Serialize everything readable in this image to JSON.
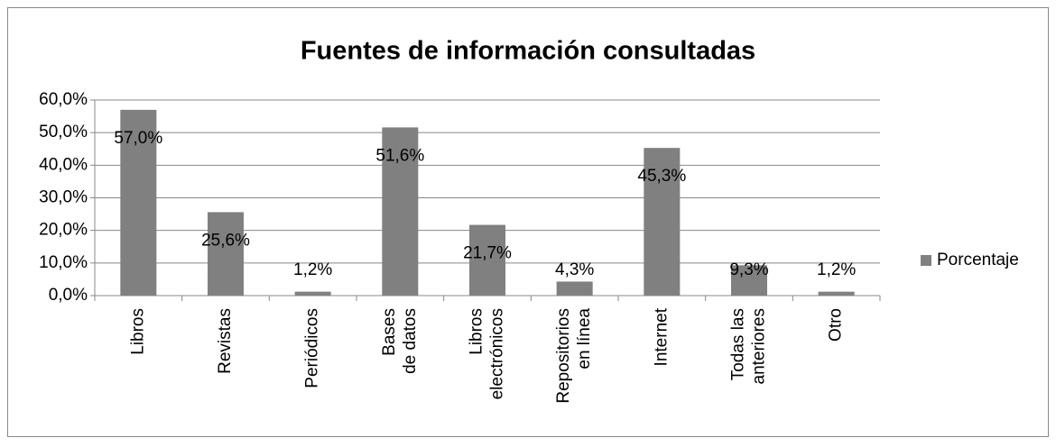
{
  "chart_data": {
    "type": "bar",
    "title": "Fuentes de información consultadas",
    "categories": [
      [
        "Libros"
      ],
      [
        "Revistas"
      ],
      [
        "Periódicos"
      ],
      [
        "Bases",
        "de datos"
      ],
      [
        "Libros",
        "electrónicos"
      ],
      [
        "Repositorios",
        "en línea"
      ],
      [
        "Internet"
      ],
      [
        "Todas las",
        "anteriores"
      ],
      [
        "Otro"
      ]
    ],
    "series": [
      {
        "name": "Porcentaje",
        "color": "#808080",
        "values": [
          57.0,
          25.6,
          1.2,
          51.6,
          21.7,
          4.3,
          45.3,
          9.3,
          1.2
        ],
        "value_labels": [
          "57,0%",
          "25,6%",
          "1,2%",
          "51,6%",
          "21,7%",
          "4,3%",
          "45,3%",
          "9,3%",
          "1,2%"
        ]
      }
    ],
    "ylim": [
      0,
      60
    ],
    "yticks": [
      {
        "value": 0,
        "label": "0,0%"
      },
      {
        "value": 10,
        "label": "10,0%"
      },
      {
        "value": 20,
        "label": "20,0%"
      },
      {
        "value": 30,
        "label": "30,0%"
      },
      {
        "value": 40,
        "label": "40,0%"
      },
      {
        "value": 50,
        "label": "50,0%"
      },
      {
        "value": 60,
        "label": "60,0%"
      }
    ],
    "grid": true,
    "legend": "right"
  }
}
